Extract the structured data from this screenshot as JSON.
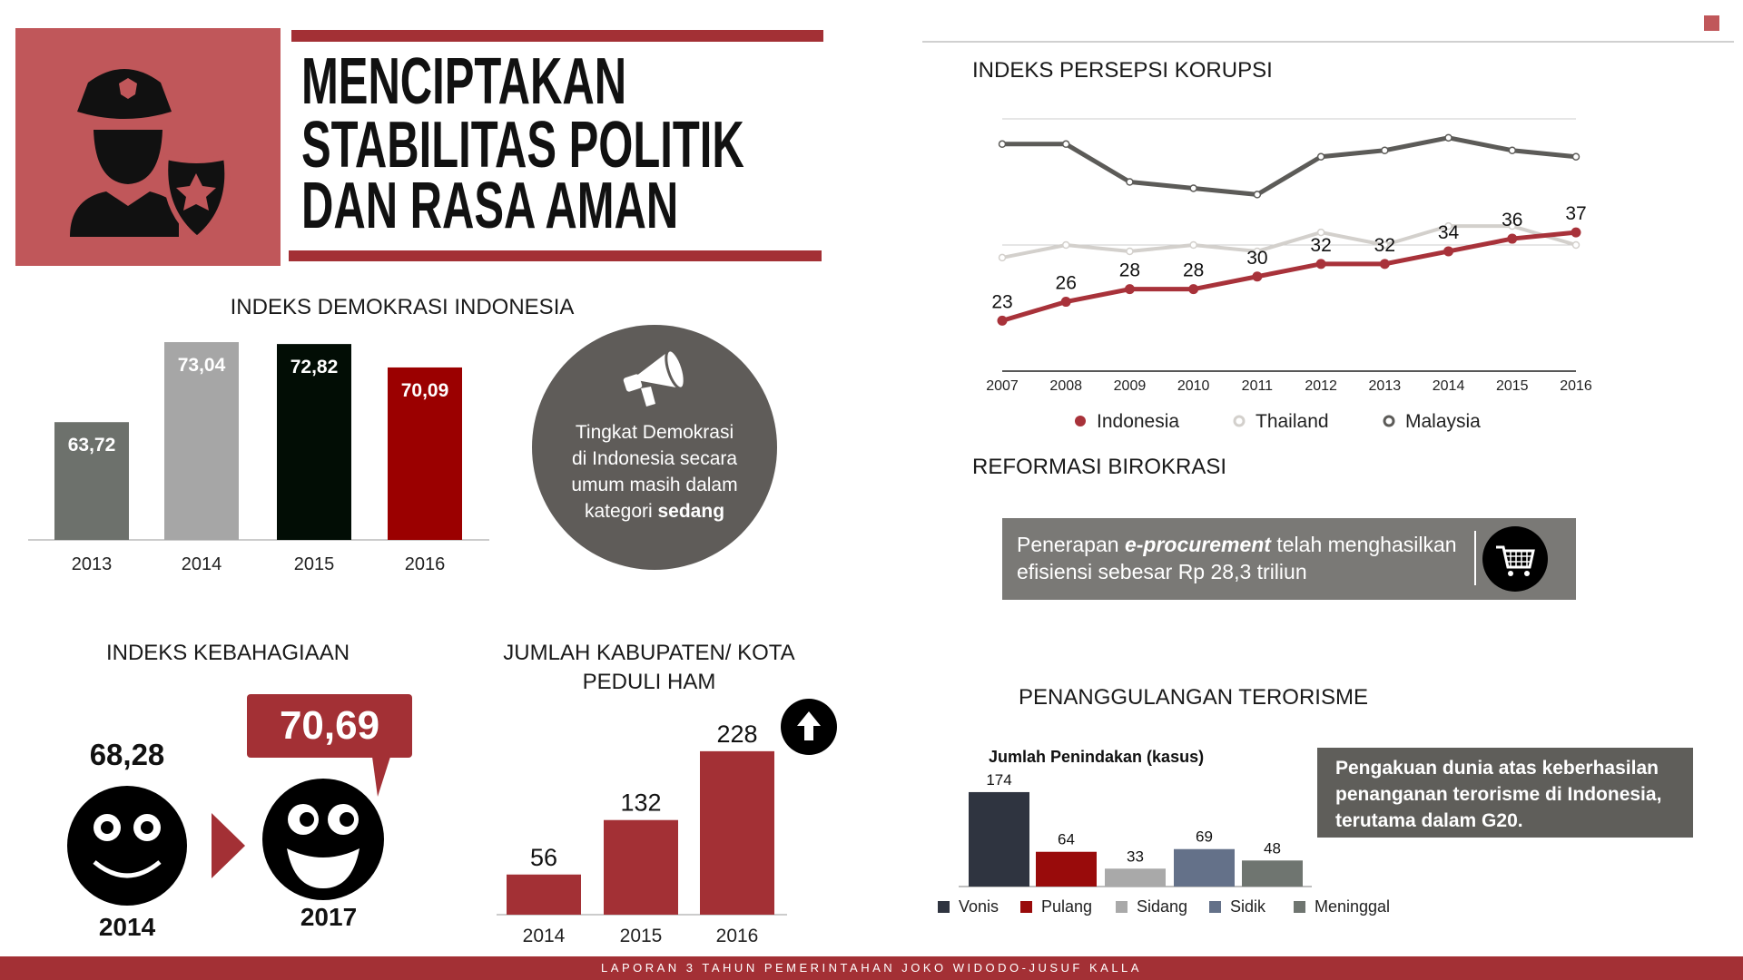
{
  "header": {
    "title_lines": [
      "MENCIPTAKAN",
      "STABILITAS POLITIK",
      "DAN RASA AMAN"
    ],
    "icon": "police-officer-icon",
    "accent": "#c0575a"
  },
  "demokrasi": {
    "title": "INDEKS DEMOKRASI INDONESIA",
    "note_lines": [
      "Tingkat Demokrasi",
      "di Indonesia secara",
      "umum masih dalam"
    ],
    "note_last_prefix": "kategori ",
    "note_bold": "sedang",
    "icon": "megaphone-icon"
  },
  "kebahagiaan": {
    "title": "INDEKS KEBAHAGIAAN",
    "v2014": "68,28",
    "y2014": "2014",
    "v2017": "70,69",
    "y2017": "2017"
  },
  "ham": {
    "title_lines": [
      "JUMLAH KABUPATEN/ KOTA",
      "PEDULI HAM"
    ],
    "icon": "arrow-up-icon"
  },
  "korupsi": {
    "title": "INDEKS PERSEPSI KORUPSI"
  },
  "reformasi": {
    "title": "REFORMASI BIROKRASI",
    "text_prefix": "Penerapan ",
    "text_em": "e-procurement",
    "text_suffix": " telah menghasilkan",
    "text_line2": "efisiensi sebesar Rp 28,3 triliun",
    "icon": "shopping-cart-icon"
  },
  "terorisme": {
    "title": "PENANGGULANGAN TERORISME",
    "note_lines": [
      "Pengakuan dunia atas keberhasilan",
      "penanganan terorisme di Indonesia,",
      "terutama dalam G20."
    ]
  },
  "footer": {
    "text": "LAPORAN 3 TAHUN PEMERINTAHAN JOKO WIDODO-JUSUF KALLA"
  },
  "chart_data": [
    {
      "type": "bar",
      "title": "INDEKS DEMOKRASI INDONESIA",
      "categories": [
        "2013",
        "2014",
        "2015",
        "2016"
      ],
      "values": [
        63.72,
        73.04,
        72.82,
        70.09
      ],
      "labels": [
        "63,72",
        "73,04",
        "72,82",
        "70,09"
      ],
      "colors": [
        "#6d716c",
        "#a6a6a6",
        "#020d05",
        "#9b0000"
      ],
      "ylim": [
        50,
        75
      ]
    },
    {
      "type": "bar",
      "title": "JUMLAH KABUPATEN/ KOTA PEDULI HAM",
      "categories": [
        "2014",
        "2015",
        "2016"
      ],
      "values": [
        56,
        132,
        228
      ],
      "color": "#a33035"
    },
    {
      "type": "line",
      "title": "INDEKS PERSEPSI KORUPSI",
      "x": [
        "2007",
        "2008",
        "2009",
        "2010",
        "2011",
        "2012",
        "2013",
        "2014",
        "2015",
        "2016"
      ],
      "ylim": [
        15,
        55
      ],
      "grid": [
        15,
        35,
        55
      ],
      "series": [
        {
          "name": "Indonesia",
          "color": "#a8323a",
          "values": [
            23,
            26,
            28,
            28,
            30,
            32,
            32,
            34,
            36,
            37
          ],
          "labeled": true
        },
        {
          "name": "Thailand",
          "color": "#d3d0cc",
          "values": [
            33,
            35,
            34,
            35,
            34,
            37,
            35,
            38,
            38,
            35
          ]
        },
        {
          "name": "Malaysia",
          "color": "#5c5b58",
          "values": [
            51,
            51,
            45,
            44,
            43,
            49,
            50,
            52,
            50,
            49
          ]
        }
      ],
      "legend": "bottom"
    },
    {
      "type": "bar",
      "title": "Jumlah Penindakan (kasus)",
      "categories": [
        "Vonis",
        "Pulang",
        "Sidang",
        "Sidik",
        "Meninggal"
      ],
      "values": [
        174,
        64,
        33,
        69,
        48
      ],
      "colors": [
        "#2f3440",
        "#990b0b",
        "#a9a9a9",
        "#647189",
        "#6f7570"
      ],
      "legend": "bottom"
    }
  ]
}
